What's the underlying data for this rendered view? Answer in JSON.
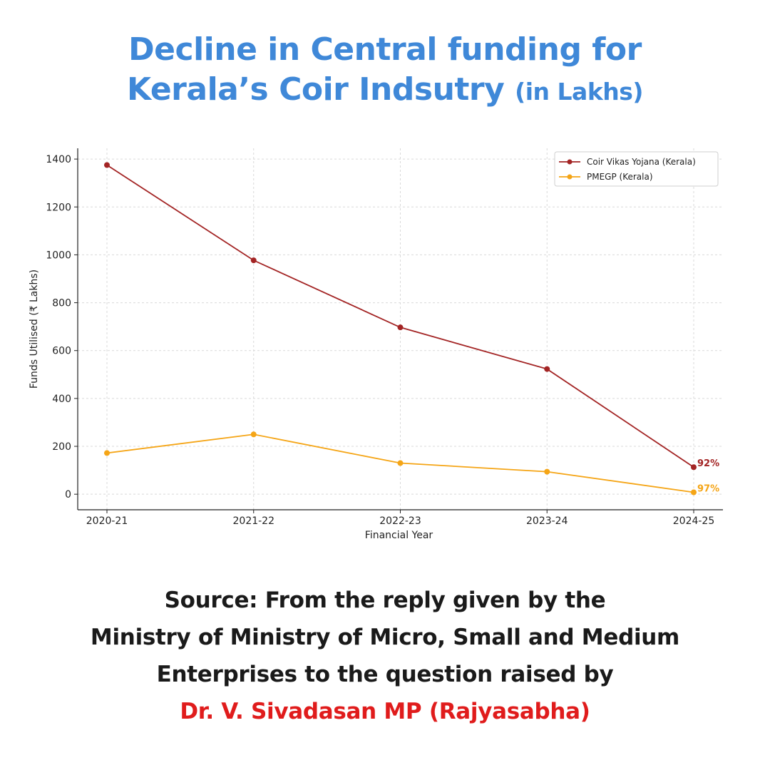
{
  "title": {
    "line1": "Decline in Central funding for",
    "line2": "Kerala’s Coir Indsutry",
    "unit": "(in Lakhs)"
  },
  "source": {
    "line1": "Source: From the reply given by the",
    "line2": "Ministry of Ministry of Micro, Small and Medium",
    "line3": "Enterprises to the question raised by",
    "line4": "Dr. V. Sivadasan MP (Rajyasabha)"
  },
  "colors": {
    "title": "#3f88d8",
    "source_highlight": "#e01c1c"
  },
  "chart_data": {
    "type": "line",
    "categories": [
      "2020-21",
      "2021-22",
      "2022-23",
      "2023-24",
      "2024-25"
    ],
    "series": [
      {
        "name": "Coir Vikas Yojana (Kerala)",
        "values": [
          1375,
          977,
          697,
          523,
          113
        ],
        "color": "#a32424",
        "end_annotation": "92%"
      },
      {
        "name": "PMEGP (Kerala)",
        "values": [
          172,
          250,
          130,
          94,
          8
        ],
        "color": "#f5a516",
        "end_annotation": "97%"
      }
    ],
    "xlabel": "Financial Year",
    "ylabel": "Funds Utilised (₹ Lakhs)",
    "yticks": [
      0,
      200,
      400,
      600,
      800,
      1000,
      1200,
      1400
    ],
    "ylim": [
      -65,
      1445
    ],
    "grid": true,
    "legend_position": "top-right"
  }
}
